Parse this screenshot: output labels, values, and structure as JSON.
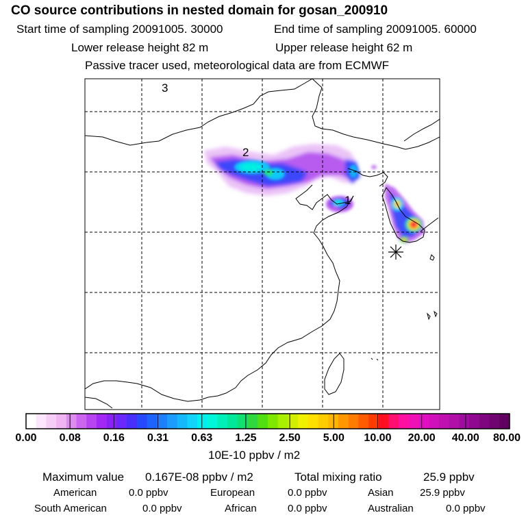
{
  "header": {
    "title": "CO  source contributions in nested domain for gosan_200910",
    "start_time": "Start time of sampling 20091005. 30000",
    "end_time": "End time of sampling 20091005. 60000",
    "lower_release": "Lower release height   82 m",
    "upper_release": "Upper release height   62 m",
    "note": "Passive tracer used, meteorological data are from ECMWF"
  },
  "map": {
    "labels": [
      "3",
      "2",
      "1"
    ],
    "receptor_icon": "asterisk-marker-icon"
  },
  "colorbar": {
    "ticks": [
      "0.00",
      "0.08",
      "0.16",
      "0.31",
      "0.63",
      "1.25",
      "2.50",
      "5.00",
      "10.00",
      "20.00",
      "40.00",
      "80.00"
    ],
    "unit": "10E-10 ppbv / m2",
    "colors": [
      "#ffffff",
      "#fbe6fb",
      "#f6cdf6",
      "#f0b4f2",
      "#dd8cf0",
      "#cc66ee",
      "#b844f0",
      "#a428f4",
      "#8a22f6",
      "#6a28fa",
      "#4830fc",
      "#2848fc",
      "#1c64fc",
      "#1c80fc",
      "#1c9cfc",
      "#14b8fc",
      "#10d4fa",
      "#00f0f0",
      "#00f8d8",
      "#00f0b8",
      "#00e898",
      "#10e070",
      "#30d840",
      "#50e010",
      "#80e800",
      "#a8f000",
      "#d0f000",
      "#f0f000",
      "#ffe000",
      "#ffcc00",
      "#ffb400",
      "#ff9800",
      "#ff7c00",
      "#ff5c00",
      "#ff3c00",
      "#ff1020",
      "#ff1070",
      "#ff10a0",
      "#f010b8",
      "#e010c0",
      "#d010b8",
      "#c010b0",
      "#b010a8",
      "#a00ca0",
      "#900890",
      "#800680",
      "#700470",
      "#600060"
    ]
  },
  "stats": {
    "max_label": "Maximum value",
    "max_value": "0.167E-08 ppbv / m2",
    "total_label": "Total mixing ratio",
    "total_value": "25.9 ppbv",
    "regions": [
      {
        "name": "American",
        "value": "0.0 ppbv"
      },
      {
        "name": "European",
        "value": "0.0 ppbv"
      },
      {
        "name": "Asian",
        "value": "25.9 ppbv"
      },
      {
        "name": "South American",
        "value": "0.0 ppbv"
      },
      {
        "name": "African",
        "value": "0.0 ppbv"
      },
      {
        "name": "Australian",
        "value": "0.0 ppbv"
      }
    ]
  }
}
